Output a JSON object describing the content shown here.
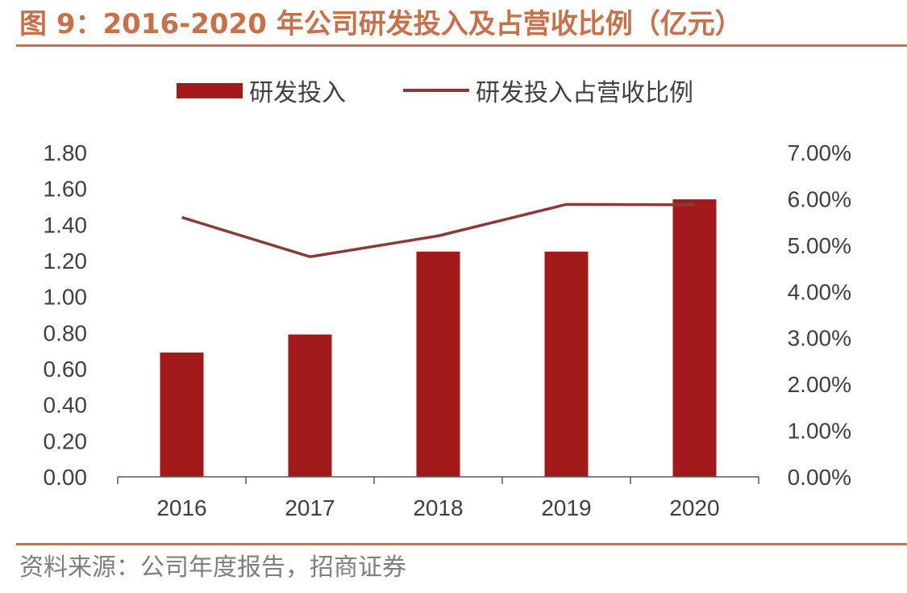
{
  "header": {
    "title": "图 9：2016-2020 年公司研发投入及占营收比例（亿元）"
  },
  "footer": {
    "source": "资料来源：公司年度报告，招商证券"
  },
  "colors": {
    "accent": "#c8704a",
    "bar": "#a31a1a",
    "line": "#8b3a3a",
    "text": "#404040"
  },
  "chart_data": {
    "type": "bar",
    "title": "图 9：2016-2020 年公司研发投入及占营收比例（亿元）",
    "categories": [
      "2016",
      "2017",
      "2018",
      "2019",
      "2020"
    ],
    "series": [
      {
        "name": "研发投入",
        "type": "bar",
        "axis": "left",
        "values": [
          0.69,
          0.79,
          1.25,
          1.25,
          1.54
        ]
      },
      {
        "name": "研发投入占营收比例",
        "type": "line",
        "axis": "right",
        "values": [
          5.6,
          4.75,
          5.2,
          5.88,
          5.87
        ]
      }
    ],
    "y_left": {
      "ylim": [
        0,
        1.8
      ],
      "ticks": [
        "0.00",
        "0.20",
        "0.40",
        "0.60",
        "0.80",
        "1.00",
        "1.20",
        "1.40",
        "1.60",
        "1.80"
      ]
    },
    "y_right": {
      "ylim": [
        0,
        7
      ],
      "ticks": [
        "0.00%",
        "1.00%",
        "2.00%",
        "3.00%",
        "4.00%",
        "5.00%",
        "6.00%",
        "7.00%"
      ]
    },
    "legend": "top-center",
    "grid": false
  }
}
